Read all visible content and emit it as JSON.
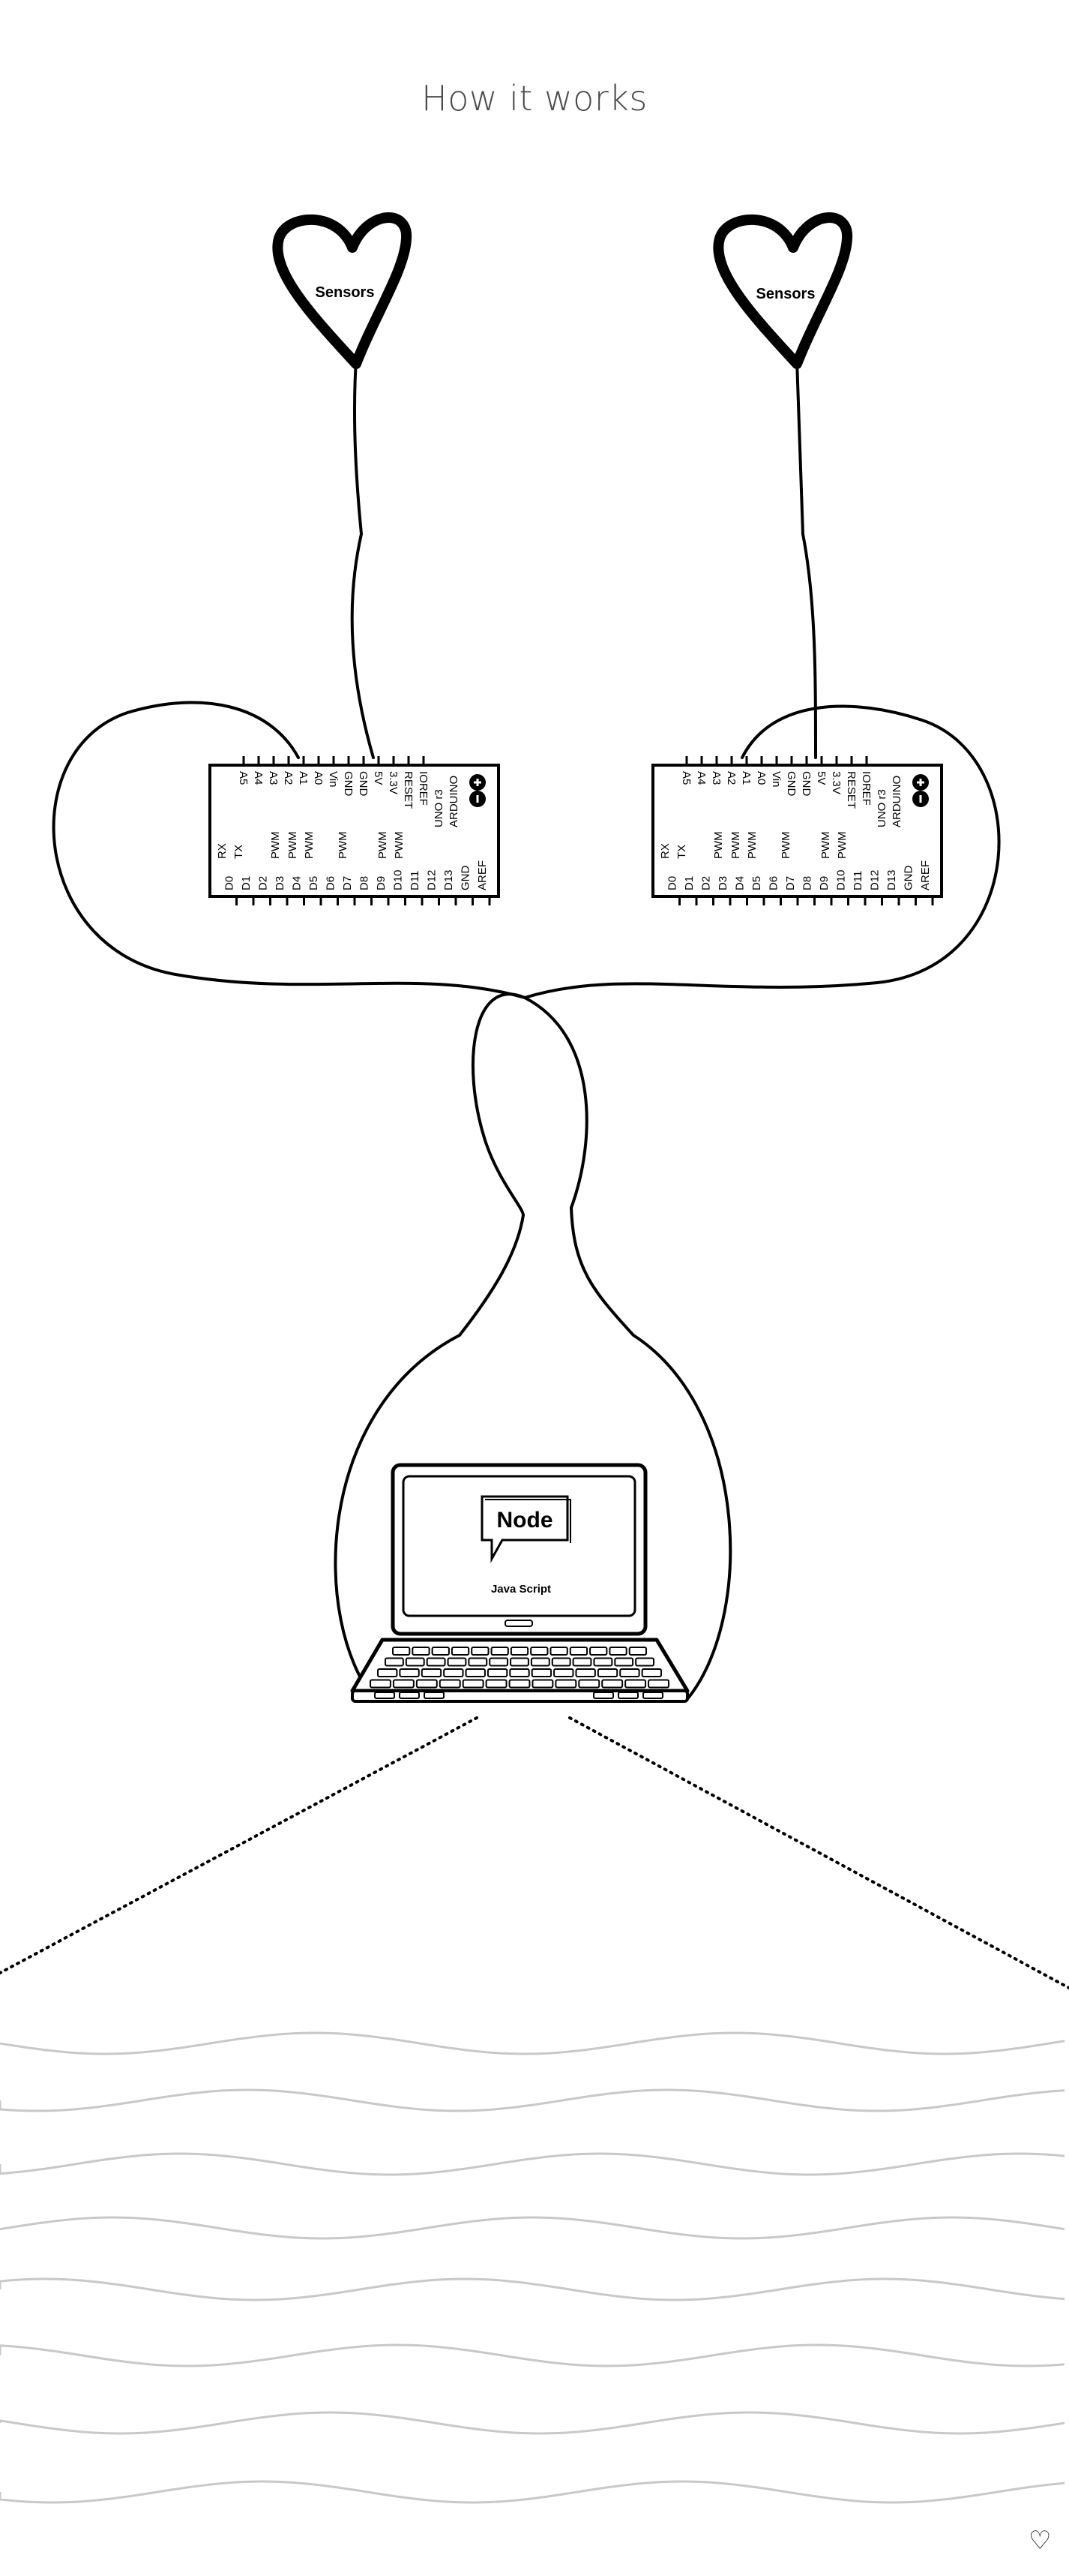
{
  "page": {
    "title": "How it works",
    "footer_icon": "♡"
  },
  "sensors": [
    {
      "label": "Sensors"
    },
    {
      "label": "Sensors"
    }
  ],
  "arduino": {
    "brand": "ARDUINO",
    "model": "UNO r3",
    "pins_top": [
      "IOREF",
      "RESET",
      "3.3V",
      "5V",
      "GND",
      "GND",
      "Vin",
      "A0",
      "A1",
      "A2",
      "A3",
      "A4",
      "A5"
    ],
    "pins_bottom": [
      "AREF",
      "GND",
      "D13",
      "D12",
      "D11",
      "D10",
      "D9",
      "D8",
      "D7",
      "D6",
      "D5",
      "D4",
      "D3",
      "D2",
      "D1",
      "D0"
    ],
    "pwm_label": "PWM",
    "tx_label": "TX",
    "rx_label": "RX"
  },
  "laptop": {
    "bubble_label": "Node",
    "screen_label": "Java Script"
  },
  "colors": {
    "ink": "#000000",
    "title": "#4a4a4a",
    "wave": "#c8c8c8"
  }
}
